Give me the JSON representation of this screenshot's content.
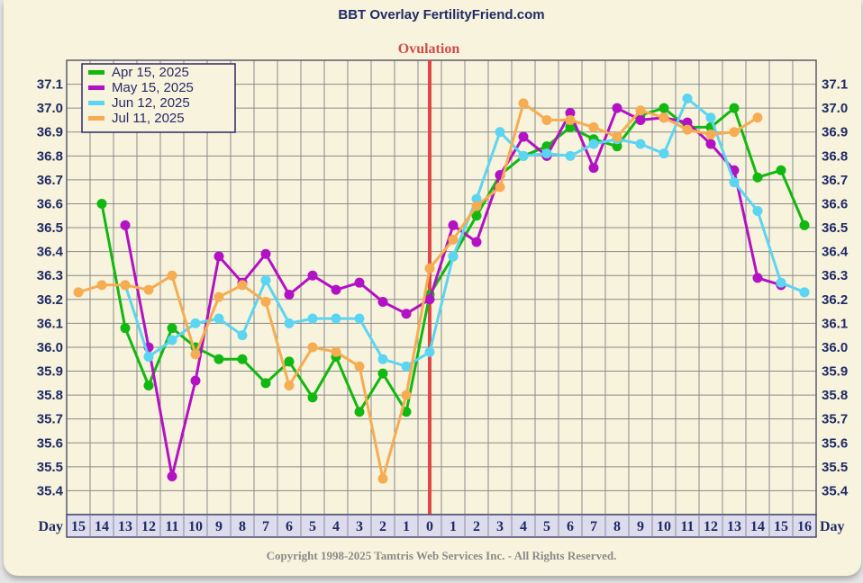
{
  "chart_data": {
    "type": "line",
    "title": "BBT Overlay FertilityFriend.com",
    "annotation": "Ovulation",
    "ovulation_day": "0",
    "xlabel": "Day",
    "categories": [
      "15",
      "14",
      "13",
      "12",
      "11",
      "10",
      "9",
      "8",
      "7",
      "6",
      "5",
      "4",
      "3",
      "2",
      "1",
      "0",
      "1",
      "2",
      "3",
      "4",
      "5",
      "6",
      "7",
      "8",
      "9",
      "10",
      "11",
      "12",
      "13",
      "14",
      "15",
      "16"
    ],
    "y_ticks": [
      "37.1",
      "37.0",
      "36.9",
      "36.8",
      "36.7",
      "36.6",
      "36.5",
      "36.4",
      "36.3",
      "36.2",
      "36.1",
      "36.0",
      "35.9",
      "35.8",
      "35.7",
      "35.6",
      "35.5",
      "35.4"
    ],
    "ylim": [
      35.3,
      37.2
    ],
    "grid": true,
    "legend_position": "top-left",
    "copyright": "Copyright 1998-2025 Tamtris Web Services Inc. - All Rights Reserved.",
    "series": [
      {
        "name": "Apr 15, 2025",
        "color": "#11b811",
        "values": [
          null,
          36.6,
          36.08,
          35.84,
          36.08,
          36.0,
          35.95,
          35.95,
          35.85,
          35.94,
          35.79,
          35.96,
          35.73,
          35.89,
          35.73,
          36.22,
          36.38,
          36.55,
          36.72,
          36.8,
          36.84,
          36.92,
          36.87,
          36.84,
          36.97,
          37.0,
          36.92,
          36.92,
          37.0,
          36.71,
          36.74,
          36.51
        ]
      },
      {
        "name": "May 15, 2025",
        "color": "#b311c4",
        "values": [
          null,
          null,
          36.51,
          36.0,
          35.46,
          35.86,
          36.38,
          36.27,
          36.39,
          36.22,
          36.3,
          36.24,
          36.27,
          36.19,
          36.14,
          36.2,
          36.51,
          36.44,
          36.72,
          36.88,
          36.8,
          36.98,
          36.75,
          37.0,
          36.95,
          36.96,
          36.94,
          36.85,
          36.74,
          36.29,
          36.26,
          null
        ]
      },
      {
        "name": "Jun 12, 2025",
        "color": "#5bd5f2",
        "values": [
          null,
          null,
          36.26,
          35.96,
          36.03,
          36.1,
          36.12,
          36.05,
          36.28,
          36.1,
          36.12,
          36.12,
          36.12,
          35.95,
          35.92,
          35.98,
          36.38,
          36.62,
          36.9,
          36.8,
          36.81,
          36.8,
          36.85,
          36.87,
          36.85,
          36.81,
          37.04,
          36.96,
          36.69,
          36.57,
          36.27,
          36.23
        ]
      },
      {
        "name": "Jul 11, 2025",
        "color": "#f6ac52",
        "values": [
          36.23,
          36.26,
          36.26,
          36.24,
          36.3,
          35.97,
          36.21,
          36.26,
          36.19,
          35.84,
          36.0,
          35.98,
          35.92,
          35.45,
          35.8,
          36.33,
          36.45,
          36.59,
          36.67,
          37.02,
          36.95,
          36.95,
          36.92,
          36.88,
          36.99,
          36.96,
          36.91,
          36.89,
          36.9,
          36.96,
          null,
          null
        ]
      }
    ]
  }
}
